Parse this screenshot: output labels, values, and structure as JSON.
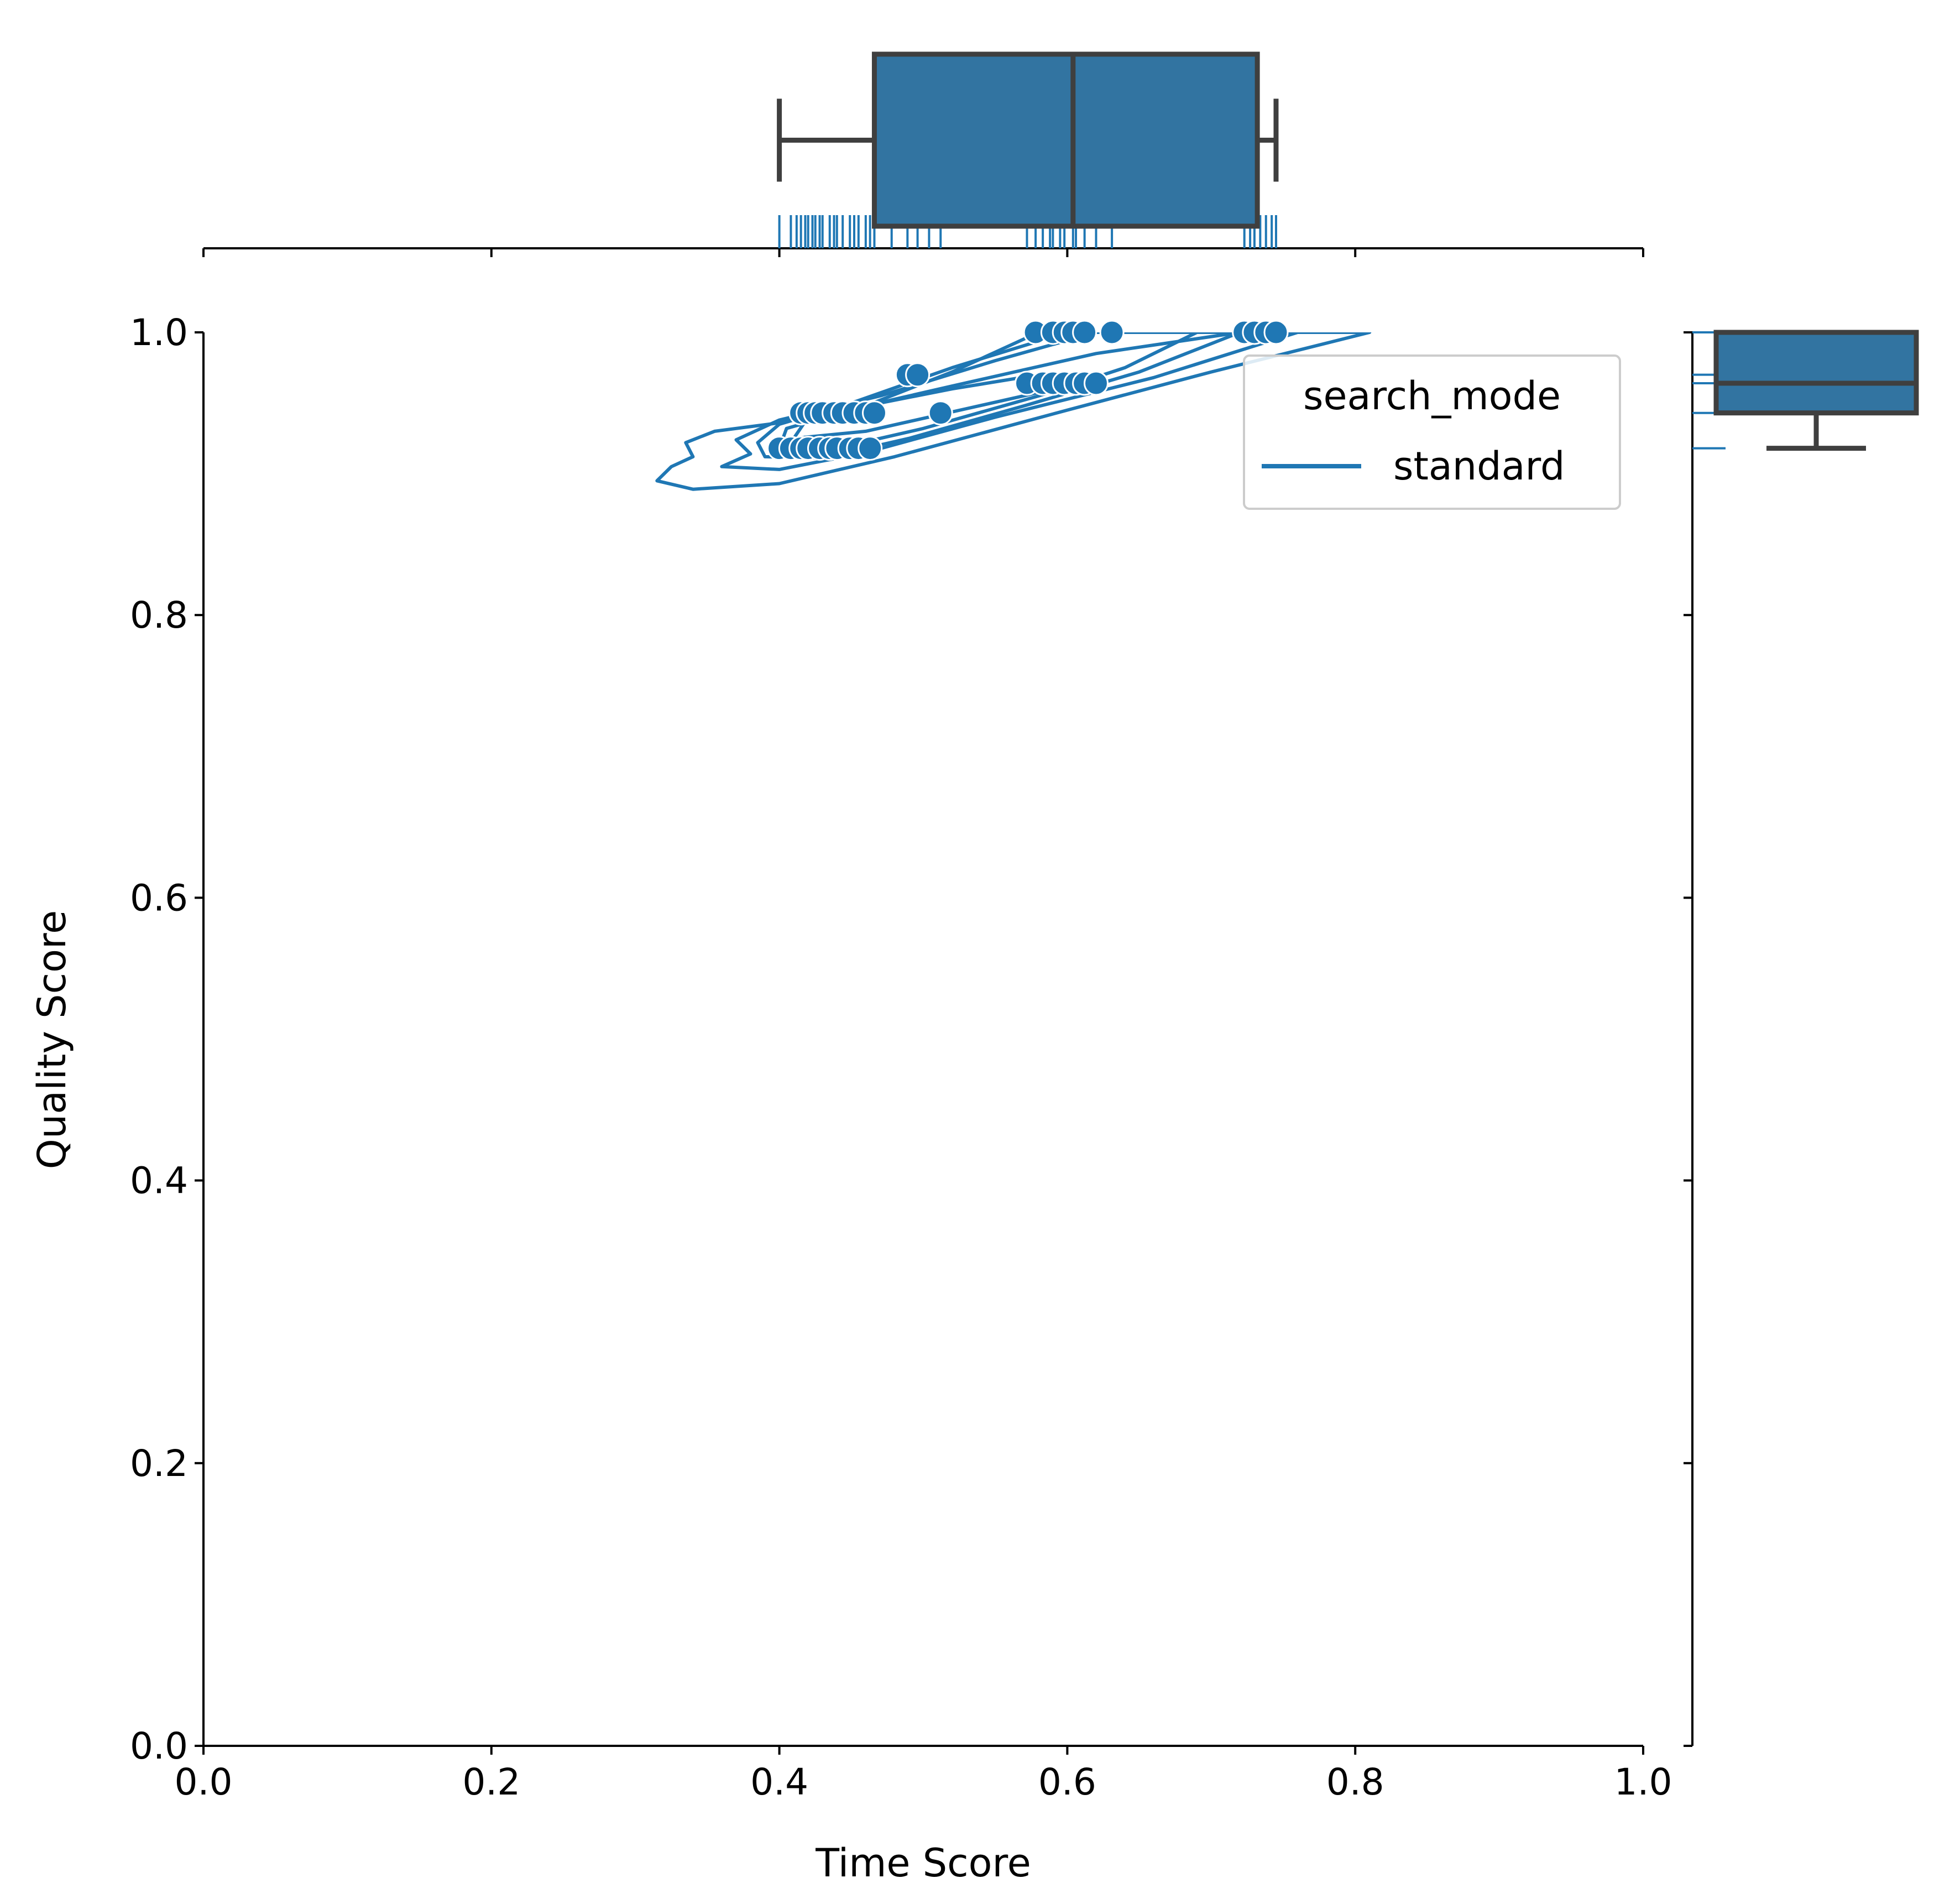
{
  "chart_data": {
    "type": "scatter",
    "xlabel": "Time Score",
    "ylabel": "Quality Score",
    "xlim": [
      0.0,
      1.0
    ],
    "ylim": [
      0.0,
      1.0
    ],
    "x_ticks": [
      "0.0",
      "0.2",
      "0.4",
      "0.6",
      "0.8",
      "1.0"
    ],
    "y_ticks": [
      "0.0",
      "0.2",
      "0.4",
      "0.6",
      "0.8",
      "1.0"
    ],
    "grid": false,
    "legend": {
      "title": "search_mode",
      "placement": "top-right",
      "entries": [
        {
          "label": "standard",
          "color": "#1f77b4"
        }
      ]
    },
    "series": [
      {
        "name": "standard",
        "color": "#1f77b4",
        "points": [
          {
            "x": 0.4,
            "y": 0.918
          },
          {
            "x": 0.408,
            "y": 0.918
          },
          {
            "x": 0.415,
            "y": 0.918
          },
          {
            "x": 0.42,
            "y": 0.918
          },
          {
            "x": 0.428,
            "y": 0.918
          },
          {
            "x": 0.435,
            "y": 0.918
          },
          {
            "x": 0.44,
            "y": 0.918
          },
          {
            "x": 0.449,
            "y": 0.918
          },
          {
            "x": 0.455,
            "y": 0.918
          },
          {
            "x": 0.463,
            "y": 0.918
          },
          {
            "x": 0.415,
            "y": 0.943
          },
          {
            "x": 0.42,
            "y": 0.943
          },
          {
            "x": 0.425,
            "y": 0.943
          },
          {
            "x": 0.43,
            "y": 0.943
          },
          {
            "x": 0.438,
            "y": 0.943
          },
          {
            "x": 0.444,
            "y": 0.943
          },
          {
            "x": 0.452,
            "y": 0.943
          },
          {
            "x": 0.46,
            "y": 0.943
          },
          {
            "x": 0.466,
            "y": 0.943
          },
          {
            "x": 0.512,
            "y": 0.943
          },
          {
            "x": 0.489,
            "y": 0.97
          },
          {
            "x": 0.496,
            "y": 0.97
          },
          {
            "x": 0.572,
            "y": 0.964
          },
          {
            "x": 0.583,
            "y": 0.964
          },
          {
            "x": 0.59,
            "y": 0.964
          },
          {
            "x": 0.598,
            "y": 0.964
          },
          {
            "x": 0.606,
            "y": 0.964
          },
          {
            "x": 0.612,
            "y": 0.964
          },
          {
            "x": 0.62,
            "y": 0.964
          },
          {
            "x": 0.578,
            "y": 1.0
          },
          {
            "x": 0.59,
            "y": 1.0
          },
          {
            "x": 0.598,
            "y": 1.0
          },
          {
            "x": 0.604,
            "y": 1.0
          },
          {
            "x": 0.612,
            "y": 1.0
          },
          {
            "x": 0.631,
            "y": 1.0
          },
          {
            "x": 0.723,
            "y": 1.0
          },
          {
            "x": 0.73,
            "y": 1.0
          },
          {
            "x": 0.738,
            "y": 1.0
          },
          {
            "x": 0.745,
            "y": 1.0
          }
        ]
      }
    ],
    "density_contours": [
      [
        [
          0.315,
          0.895
        ],
        [
          0.34,
          0.889
        ],
        [
          0.4,
          0.893
        ],
        [
          0.48,
          0.912
        ],
        [
          0.6,
          0.945
        ],
        [
          0.7,
          0.972
        ],
        [
          0.81,
          1.0
        ],
        [
          0.72,
          1.0
        ],
        [
          0.62,
          0.985
        ],
        [
          0.52,
          0.962
        ],
        [
          0.46,
          0.948
        ],
        [
          0.4,
          0.936
        ],
        [
          0.355,
          0.93
        ],
        [
          0.335,
          0.922
        ],
        [
          0.34,
          0.912
        ],
        [
          0.325,
          0.905
        ],
        [
          0.315,
          0.895
        ]
      ],
      [
        [
          0.36,
          0.905
        ],
        [
          0.4,
          0.903
        ],
        [
          0.46,
          0.915
        ],
        [
          0.55,
          0.94
        ],
        [
          0.66,
          0.968
        ],
        [
          0.76,
          1.0
        ],
        [
          0.62,
          1.0
        ],
        [
          0.55,
          0.98
        ],
        [
          0.47,
          0.955
        ],
        [
          0.4,
          0.938
        ],
        [
          0.37,
          0.924
        ],
        [
          0.38,
          0.914
        ],
        [
          0.36,
          0.905
        ]
      ],
      [
        [
          0.39,
          0.912
        ],
        [
          0.43,
          0.911
        ],
        [
          0.49,
          0.925
        ],
        [
          0.57,
          0.948
        ],
        [
          0.65,
          0.972
        ],
        [
          0.72,
          1.0
        ],
        [
          0.6,
          1.0
        ],
        [
          0.52,
          0.975
        ],
        [
          0.45,
          0.95
        ],
        [
          0.4,
          0.935
        ],
        [
          0.385,
          0.922
        ],
        [
          0.39,
          0.912
        ]
      ],
      [
        [
          0.4,
          0.918
        ],
        [
          0.44,
          0.918
        ],
        [
          0.5,
          0.932
        ],
        [
          0.58,
          0.955
        ],
        [
          0.64,
          0.975
        ],
        [
          0.69,
          1.0
        ],
        [
          0.58,
          1.0
        ],
        [
          0.52,
          0.972
        ],
        [
          0.46,
          0.948
        ],
        [
          0.405,
          0.932
        ],
        [
          0.4,
          0.918
        ]
      ],
      [
        [
          0.41,
          0.925
        ],
        [
          0.46,
          0.93
        ],
        [
          0.53,
          0.946
        ],
        [
          0.6,
          0.962
        ],
        [
          0.58,
          0.97
        ],
        [
          0.52,
          0.96
        ],
        [
          0.47,
          0.95
        ],
        [
          0.42,
          0.94
        ],
        [
          0.41,
          0.925
        ]
      ]
    ],
    "marginal_x_box": {
      "whisker_low": 0.4,
      "q1": 0.466,
      "median": 0.604,
      "q3": 0.732,
      "whisker_high": 0.745
    },
    "marginal_y_box": {
      "whisker_low": 0.918,
      "q1": 0.943,
      "median": 0.964,
      "q3": 1.0,
      "whisker_high": 1.0
    },
    "marginal_x_rug": [
      0.4,
      0.408,
      0.412,
      0.415,
      0.418,
      0.42,
      0.423,
      0.425,
      0.428,
      0.43,
      0.435,
      0.438,
      0.44,
      0.444,
      0.449,
      0.452,
      0.455,
      0.46,
      0.463,
      0.466,
      0.478,
      0.489,
      0.496,
      0.504,
      0.512,
      0.572,
      0.578,
      0.583,
      0.588,
      0.59,
      0.595,
      0.598,
      0.604,
      0.606,
      0.612,
      0.62,
      0.631,
      0.723,
      0.727,
      0.73,
      0.734,
      0.738,
      0.742,
      0.745
    ],
    "marginal_y_rug": [
      0.918,
      0.943,
      0.964,
      0.97,
      1.0
    ]
  }
}
